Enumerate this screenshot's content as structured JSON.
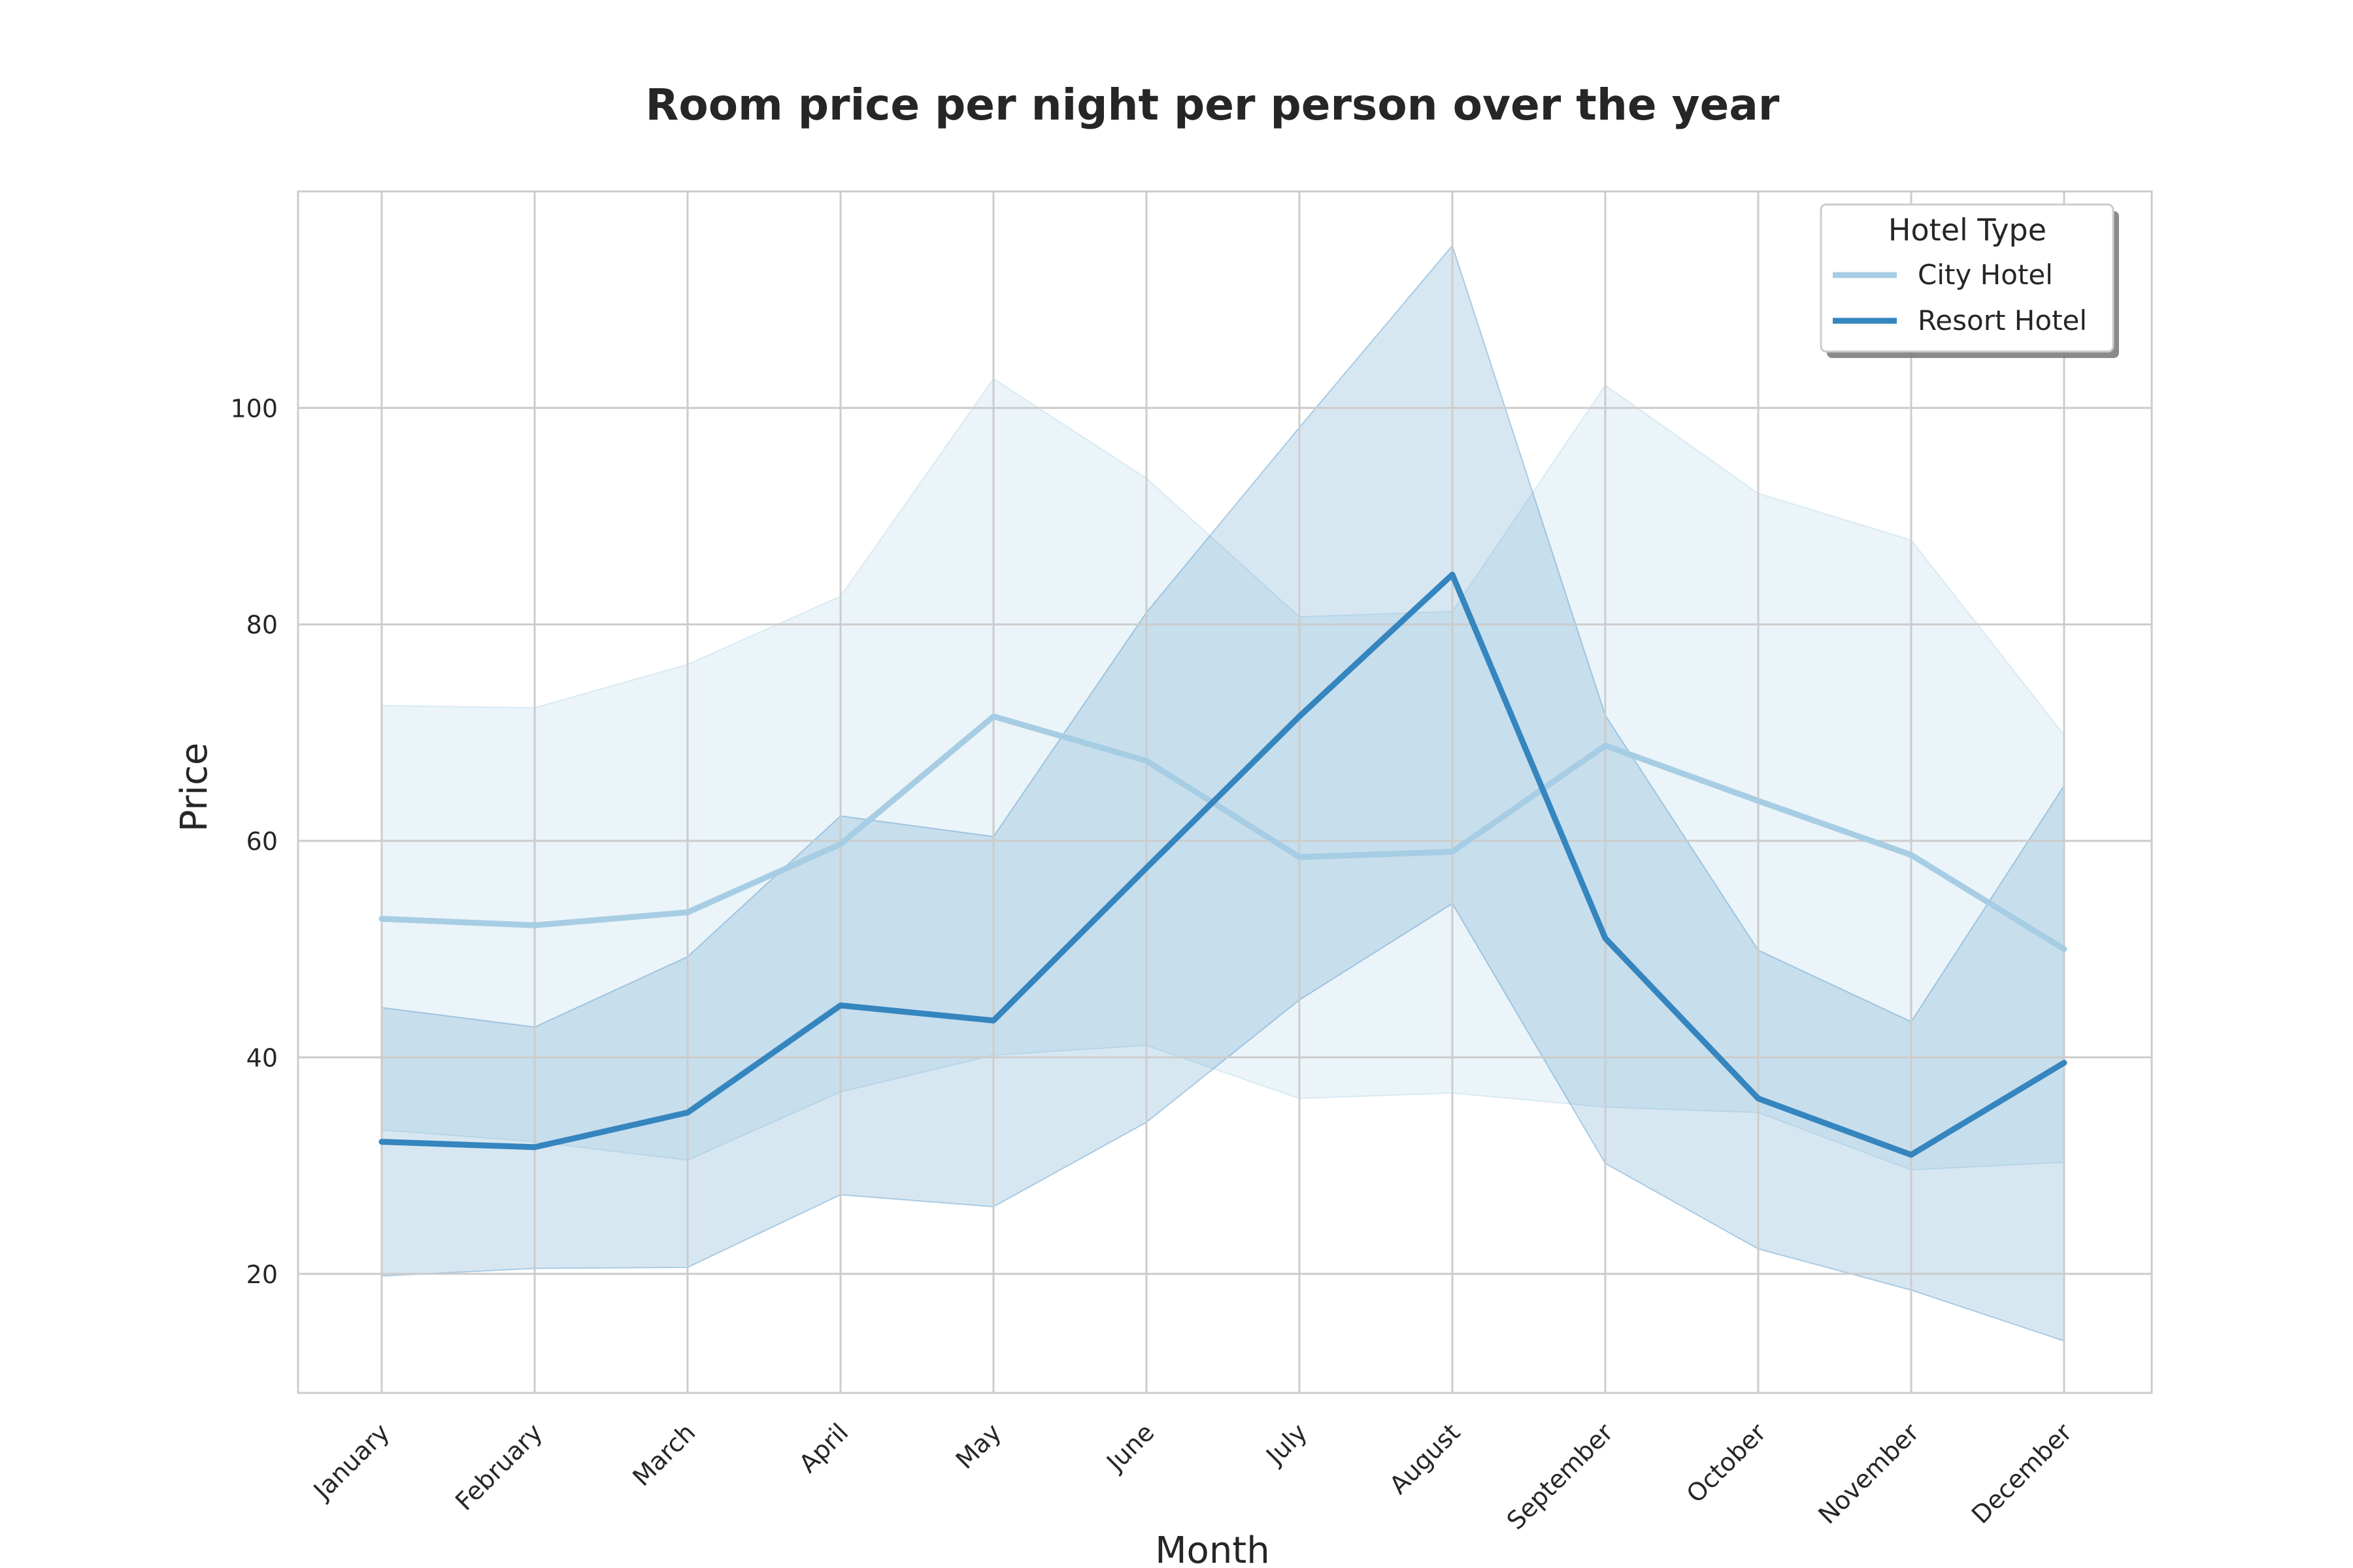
{
  "chart_data": {
    "type": "line",
    "title": "Room price per night per person over the year",
    "xlabel": "Month",
    "ylabel": "Price",
    "categories": [
      "January",
      "February",
      "March",
      "April",
      "May",
      "June",
      "July",
      "August",
      "September",
      "October",
      "November",
      "December"
    ],
    "ylim": [
      9,
      120
    ],
    "yticks": [
      20,
      40,
      60,
      80,
      100
    ],
    "grid": true,
    "legend": {
      "title": "Hotel Type",
      "placement": "top-right"
    },
    "colors": {
      "city": "#a6cde3",
      "resort": "#3585bf",
      "grid": "#cccccc",
      "frame": "#cccccc"
    },
    "series": [
      {
        "name": "City Hotel",
        "values": [
          52.8,
          52.2,
          53.4,
          59.7,
          71.5,
          67.4,
          58.5,
          59.0,
          68.8,
          63.7,
          58.7,
          50.0
        ],
        "upper": [
          72.5,
          72.3,
          76.3,
          82.6,
          102.7,
          93.5,
          80.7,
          81.2,
          102.1,
          92.1,
          87.8,
          69.8
        ],
        "lower": [
          33.3,
          32.2,
          30.5,
          36.8,
          40.2,
          41.1,
          36.2,
          36.7,
          35.4,
          34.9,
          29.6,
          30.3
        ]
      },
      {
        "name": "Resort Hotel",
        "values": [
          32.2,
          31.7,
          34.9,
          44.8,
          43.4,
          57.5,
          71.5,
          84.6,
          51.0,
          36.2,
          31.0,
          39.5
        ],
        "upper": [
          44.6,
          42.8,
          49.3,
          62.3,
          60.4,
          81.1,
          98.2,
          115.0,
          71.6,
          49.9,
          43.3,
          65.1
        ],
        "lower": [
          19.8,
          20.5,
          20.6,
          27.3,
          26.2,
          34.0,
          45.3,
          54.2,
          30.2,
          22.3,
          18.5,
          13.8
        ]
      }
    ]
  }
}
